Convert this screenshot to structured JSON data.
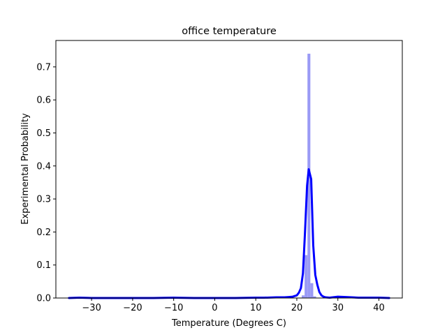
{
  "chart_data": {
    "type": "bar",
    "title": "office temperature",
    "xlabel": "Temperature (Degrees C)",
    "ylabel": "Experimental Probability",
    "xlim": [
      -38.7,
      45.7
    ],
    "ylim": [
      0,
      0.78
    ],
    "grid": false,
    "legend": "none",
    "x_ticks": [
      -30,
      -20,
      -10,
      0,
      10,
      20,
      30,
      40
    ],
    "x_tick_labels": [
      "−30",
      "−20",
      "−10",
      "0",
      "10",
      "20",
      "30",
      "40"
    ],
    "y_ticks": [
      0.0,
      0.1,
      0.2,
      0.3,
      0.4,
      0.5,
      0.6,
      0.7
    ],
    "y_tick_labels": [
      "0.0",
      "0.1",
      "0.2",
      "0.3",
      "0.4",
      "0.5",
      "0.6",
      "0.7"
    ],
    "histogram": {
      "color": "#9a9af5",
      "bins": [
        {
          "x0": 21.2,
          "x1": 21.9,
          "value": 0.008
        },
        {
          "x0": 21.9,
          "x1": 22.6,
          "value": 0.13
        },
        {
          "x0": 22.6,
          "x1": 23.3,
          "value": 0.74
        },
        {
          "x0": 23.3,
          "x1": 24.0,
          "value": 0.045
        },
        {
          "x0": 24.0,
          "x1": 24.7,
          "value": 0.005
        }
      ]
    },
    "kde": {
      "color": "#0000ff",
      "x": [
        -35.5,
        -33,
        -30,
        -25,
        -20,
        -15,
        -10,
        -5,
        0,
        5,
        10,
        12,
        15,
        17,
        18,
        19,
        20,
        20.5,
        21,
        21.5,
        22,
        22.5,
        22.9,
        23.5,
        24,
        24.5,
        25,
        25.5,
        26,
        26.5,
        27,
        28,
        30,
        32,
        35,
        38,
        40,
        42.5
      ],
      "y": [
        0.0,
        0.001,
        0.0,
        0.0,
        0.0,
        0.0,
        0.001,
        0.0,
        0.0,
        0.0,
        0.001,
        0.001,
        0.002,
        0.002,
        0.003,
        0.004,
        0.008,
        0.016,
        0.03,
        0.075,
        0.2,
        0.34,
        0.39,
        0.36,
        0.16,
        0.07,
        0.04,
        0.018,
        0.008,
        0.004,
        0.002,
        0.001,
        0.004,
        0.003,
        0.001,
        0.001,
        0.001,
        0.0
      ]
    }
  }
}
